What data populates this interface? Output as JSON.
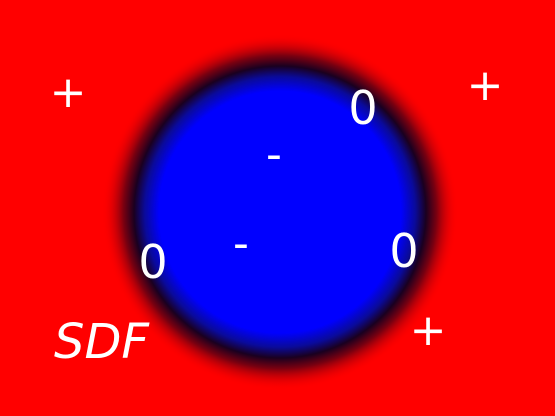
{
  "title": "SDF",
  "colors": {
    "outside": "#ff0000",
    "inside": "#0000ff",
    "boundary": "#1a0020",
    "label": "#ffffff"
  },
  "labels": {
    "outside_markers": [
      "+",
      "+",
      "+"
    ],
    "boundary_markers": [
      "0",
      "0",
      "0"
    ],
    "inside_markers": [
      "-",
      "-"
    ]
  }
}
